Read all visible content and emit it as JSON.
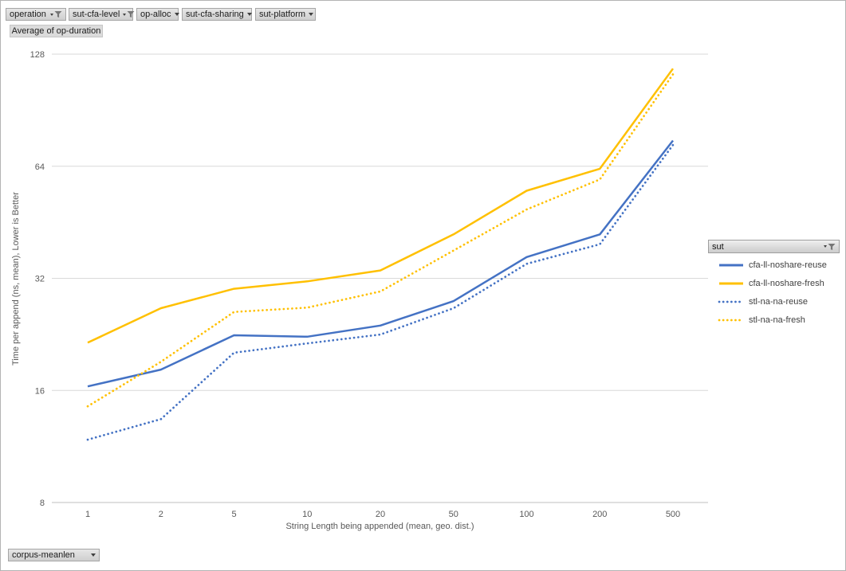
{
  "filters": {
    "top": [
      {
        "label": "operation",
        "filtered": true
      },
      {
        "label": "sut-cfa-level",
        "filtered": true
      },
      {
        "label": "op-alloc",
        "filtered": false
      },
      {
        "label": "sut-cfa-sharing",
        "filtered": false
      },
      {
        "label": "sut-platform",
        "filtered": false
      }
    ],
    "bottom": [
      {
        "label": "corpus-meanlen",
        "filtered": false
      }
    ]
  },
  "value_field_label": "Average of op-duration",
  "legend": {
    "title": "sut",
    "filtered": true,
    "position": "right"
  },
  "icons": {
    "filtered_field": "filter-funnel-icon",
    "dropdown_field": "dropdown-arrow-icon"
  },
  "colors": {
    "series_blue": "#4472C4",
    "series_gold": "#FFC000",
    "gridline": "#D9D9D9",
    "axis_line": "#BFBFBF",
    "axis_text": "#595959",
    "button_border": "#A6A6A6"
  },
  "chart_data": {
    "type": "line",
    "title": "",
    "xlabel": "String Length being appended (mean, geo. dist.)",
    "ylabel": "Time per append (ns, mean),  Lower is Better",
    "x_scale": "category",
    "y_scale": "log2",
    "ylim": [
      8,
      128
    ],
    "yticks": [
      8,
      16,
      32,
      64,
      128
    ],
    "grid": "horizontal",
    "legend_position": "right",
    "categories": [
      "1",
      "2",
      "5",
      "10",
      "20",
      "50",
      "100",
      "200",
      "500"
    ],
    "series": [
      {
        "name": "cfa-ll-noshare-reuse",
        "color": "#4472C4",
        "style": "solid",
        "values": [
          16.4,
          18.2,
          22.5,
          22.3,
          23.9,
          27.8,
          36.5,
          42,
          75
        ]
      },
      {
        "name": "cfa-ll-noshare-fresh",
        "color": "#FFC000",
        "style": "solid",
        "values": [
          21.5,
          26.6,
          30,
          31.4,
          33.6,
          42,
          55,
          63,
          117
        ]
      },
      {
        "name": "stl-na-na-reuse",
        "color": "#4472C4",
        "style": "dotted",
        "values": [
          11.8,
          13.4,
          20.2,
          21.4,
          22.6,
          26.6,
          35,
          39.5,
          73
        ]
      },
      {
        "name": "stl-na-na-fresh",
        "color": "#FFC000",
        "style": "dotted",
        "values": [
          14.5,
          19.1,
          26,
          26.7,
          29.5,
          38,
          49,
          59,
          113
        ]
      }
    ]
  }
}
